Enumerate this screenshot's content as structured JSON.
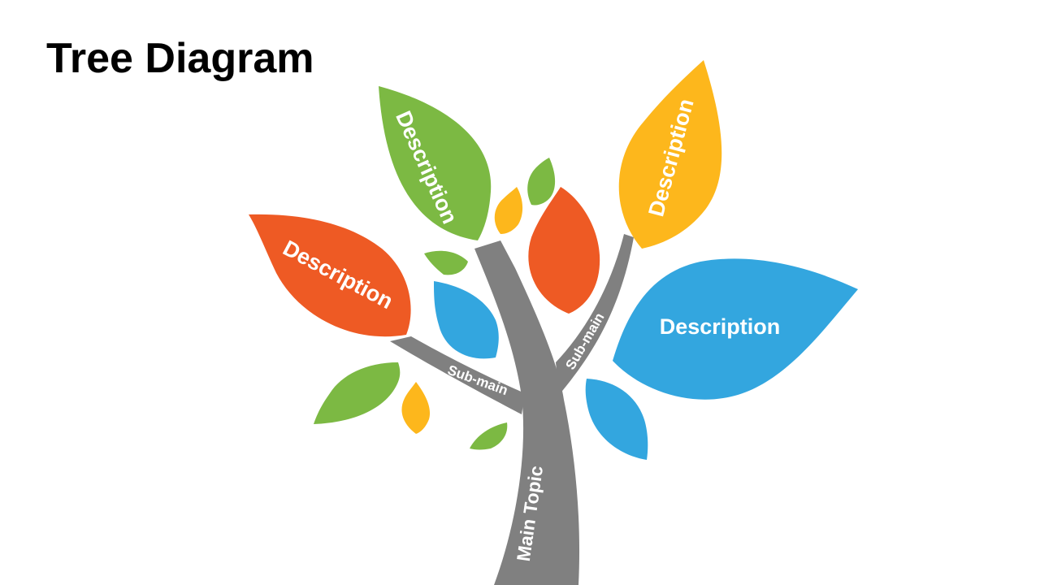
{
  "title": "Tree Diagram",
  "colors": {
    "trunk": "#808080",
    "green": "#7cb943",
    "orange": "#ee5a24",
    "yellow": "#fdb71c",
    "blue": "#33a6df"
  },
  "tree": {
    "main_topic": "Main Topic",
    "sub_main_left": "Sub-main",
    "sub_main_right": "Sub-main",
    "leaves": {
      "green_top": "Description",
      "yellow_top": "Description",
      "orange_left": "Description",
      "blue_right": "Description"
    }
  }
}
